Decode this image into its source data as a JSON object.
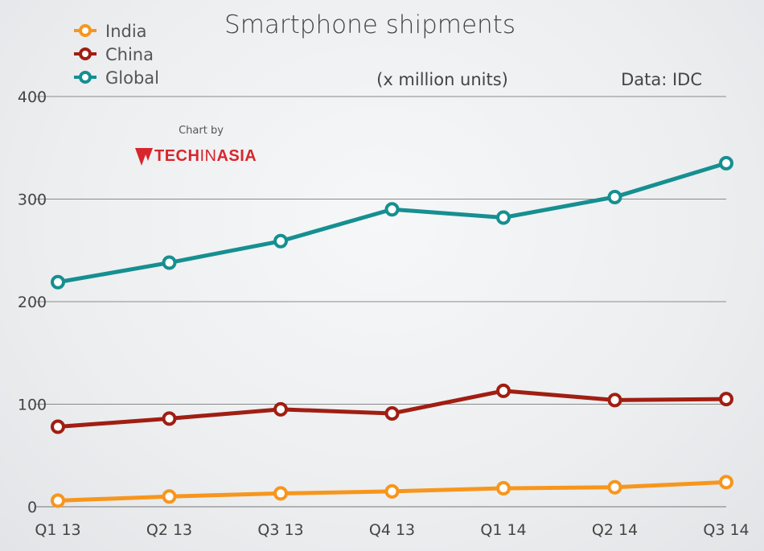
{
  "chart_data": {
    "type": "line",
    "title": "Smartphone shipments",
    "subtitle": "(x million units)",
    "source": "Data: IDC",
    "credit": {
      "label": "Chart by",
      "brand_part1": "TECH",
      "brand_part2": "IN",
      "brand_part3": "ASIA"
    },
    "categories": [
      "Q1 13",
      "Q2 13",
      "Q3 13",
      "Q4 13",
      "Q1 14",
      "Q2 14",
      "Q3 14"
    ],
    "ylim": [
      0,
      400
    ],
    "yticks": [
      0,
      100,
      200,
      300,
      400
    ],
    "grid": true,
    "legend_placement": "top-left",
    "series": [
      {
        "name": "India",
        "color": "#f7961d",
        "values": [
          6,
          10,
          13,
          15,
          18,
          19,
          24
        ]
      },
      {
        "name": "China",
        "color": "#a01e12",
        "values": [
          78,
          86,
          95,
          91,
          113,
          104,
          105
        ]
      },
      {
        "name": "Global",
        "color": "#168f91",
        "values": [
          219,
          238,
          259,
          290,
          282,
          302,
          335
        ]
      }
    ]
  }
}
